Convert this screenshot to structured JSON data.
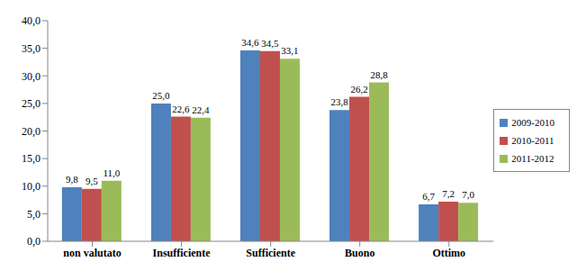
{
  "chart_data": {
    "type": "bar",
    "categories": [
      "non valutato",
      "Insufficiente",
      "Sufficiente",
      "Buono",
      "Ottimo"
    ],
    "series": [
      {
        "name": "2009-2010",
        "color": "#4f81bd",
        "values": [
          9.8,
          25.0,
          34.6,
          23.8,
          6.7
        ],
        "value_labels": [
          "9,8",
          "25,0",
          "34,6",
          "23,8",
          "6,7"
        ]
      },
      {
        "name": "2010-2011",
        "color": "#c0504d",
        "values": [
          9.5,
          22.6,
          34.5,
          26.2,
          7.2
        ],
        "value_labels": [
          "9,5",
          "22,6",
          "34,5",
          "26,2",
          "7,2"
        ]
      },
      {
        "name": "2011-2012",
        "color": "#9bbb59",
        "values": [
          11.0,
          22.4,
          33.1,
          28.8,
          7.0
        ],
        "value_labels": [
          "11,0",
          "22,4",
          "33,1",
          "28,8",
          "7,0"
        ]
      }
    ],
    "ylim": [
      0,
      40
    ],
    "yticks": [
      {
        "value": 0,
        "label": "0,0"
      },
      {
        "value": 5,
        "label": "5,0"
      },
      {
        "value": 10,
        "label": "10,0"
      },
      {
        "value": 15,
        "label": "15,0"
      },
      {
        "value": 20,
        "label": "20,0"
      },
      {
        "value": 25,
        "label": "25,0"
      },
      {
        "value": 30,
        "label": "30,0"
      },
      {
        "value": 35,
        "label": "35,0"
      },
      {
        "value": 40,
        "label": "40,0"
      }
    ],
    "grid": false,
    "legend": "right",
    "data_labels": true
  }
}
